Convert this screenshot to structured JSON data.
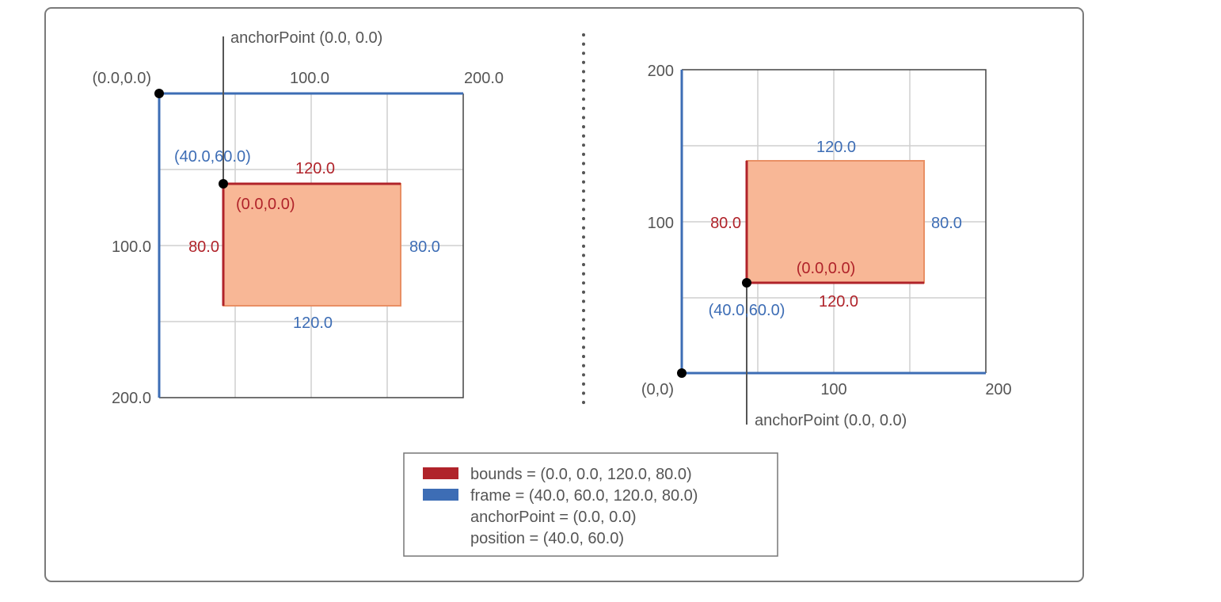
{
  "colors": {
    "bounds": "#b0232a",
    "frame": "#3d6db5",
    "layer_fill": "#f8b796",
    "layer_stroke": "#e98f64",
    "grid": "#cfcfcf",
    "text": "#555555"
  },
  "left_diagram": {
    "anchor_label": "anchorPoint (0.0, 0.0)",
    "origin_label": "(0.0,0.0)",
    "x_tick_100": "100.0",
    "x_tick_200": "200.0",
    "y_tick_100": "100.0",
    "y_tick_200": "200.0",
    "frame_origin_label": "(40.0,60.0)",
    "bounds_width_label": "120.0",
    "bounds_origin_label": "(0.0,0.0)",
    "bounds_height_label": "80.0",
    "frame_height_label": "80.0",
    "frame_width_label": "120.0"
  },
  "right_diagram": {
    "y_tick_200": "200",
    "y_tick_100": "100",
    "origin_label": "(0,0)",
    "x_tick_100": "100",
    "x_tick_200": "200",
    "frame_width_label": "120.0",
    "bounds_height_label": "80.0",
    "frame_height_label": "80.0",
    "bounds_origin_label": "(0.0,0.0)",
    "bounds_width_label": "120.0",
    "frame_origin_label": "(40.0,60.0)",
    "anchor_label": "anchorPoint (0.0, 0.0)"
  },
  "legend": {
    "bounds": "bounds = (0.0, 0.0, 120.0, 80.0)",
    "frame": "frame = (40.0, 60.0, 120.0, 80.0)",
    "anchor": "anchorPoint = (0.0, 0.0)",
    "position": "position = (40.0, 60.0)"
  }
}
